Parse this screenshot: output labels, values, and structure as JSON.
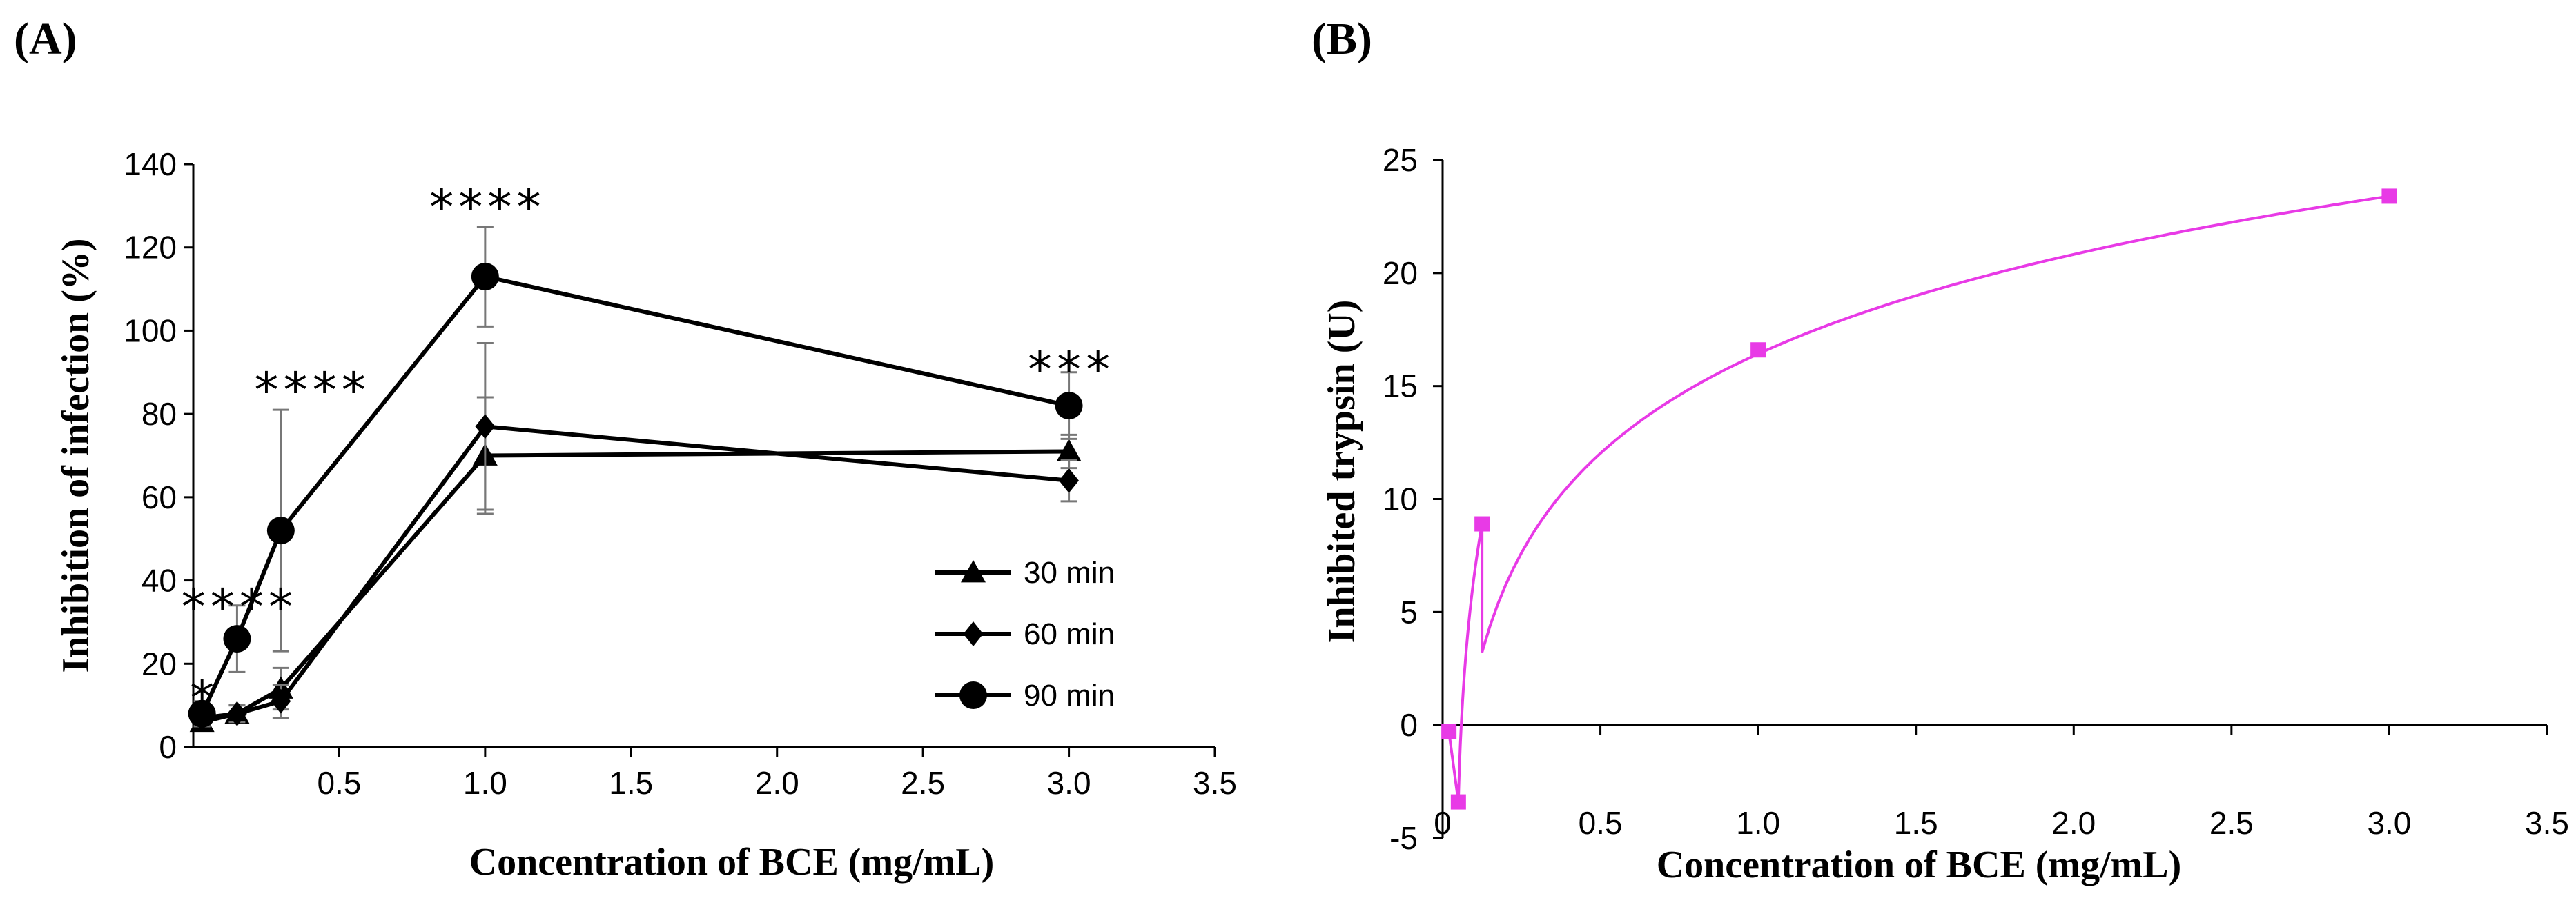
{
  "panels": {
    "a_label": "(A)",
    "b_label": "(B)"
  },
  "chart_data": [
    {
      "type": "line",
      "panel": "(A)",
      "xlabel": "Concentration of BCE (mg/mL)",
      "ylabel": "Inhibition of infection (%)",
      "xlim": [
        0,
        3.5
      ],
      "ylim": [
        0,
        140
      ],
      "xticks": [
        0.5,
        1.0,
        1.5,
        2.0,
        2.5,
        3.0,
        3.5
      ],
      "xtick_labels": [
        "0.5",
        "1.0",
        "1.5",
        "2.0",
        "2.5",
        "3.0",
        "3.5"
      ],
      "yticks": [
        0,
        20,
        40,
        60,
        80,
        100,
        120,
        140
      ],
      "ytick_labels": [
        "0",
        "20",
        "40",
        "60",
        "80",
        "100",
        "120",
        "140"
      ],
      "grid": false,
      "legend_position": "bottom-right",
      "x": [
        0.03,
        0.15,
        0.3,
        1.0,
        3.0
      ],
      "series": [
        {
          "name": "30 min",
          "marker": "triangle",
          "values": [
            6,
            8,
            14,
            70,
            71
          ],
          "errors": [
            2,
            2,
            5,
            14,
            4
          ]
        },
        {
          "name": "60 min",
          "marker": "diamond",
          "values": [
            7,
            8,
            11,
            77,
            64
          ],
          "errors": [
            2,
            2,
            4,
            20,
            5
          ]
        },
        {
          "name": "90 min",
          "marker": "circle",
          "values": [
            8,
            26,
            52,
            113,
            82
          ],
          "errors": [
            3,
            8,
            29,
            12,
            8
          ]
        }
      ],
      "annotations": [
        {
          "text": "*",
          "x": 0.03,
          "y": 12
        },
        {
          "text": "****",
          "x": 0.15,
          "y": 34
        },
        {
          "text": "****",
          "x": 0.4,
          "y": 86
        },
        {
          "text": "****",
          "x": 1.0,
          "y": 130
        },
        {
          "text": "***",
          "x": 3.0,
          "y": 91
        }
      ],
      "color": "#000000"
    },
    {
      "type": "line",
      "panel": "(B)",
      "xlabel": "Concentration of BCE (mg/mL)",
      "ylabel": "Inhibited trypsin (U)",
      "xlim": [
        0,
        3.5
      ],
      "ylim": [
        -5,
        25
      ],
      "xticks": [
        0,
        0.5,
        1.0,
        1.5,
        2.0,
        2.5,
        3.0,
        3.5
      ],
      "xtick_labels": [
        "0",
        "0.5",
        "1.0",
        "1.5",
        "2.0",
        "2.5",
        "3.0",
        "3.5"
      ],
      "yticks": [
        -5,
        0,
        5,
        10,
        15,
        20,
        25
      ],
      "ytick_labels": [
        "-5",
        "0",
        "5",
        "10",
        "15",
        "20",
        "25"
      ],
      "grid": false,
      "series": [
        {
          "name": "Inhibited trypsin",
          "marker": "square",
          "x": [
            0.02,
            0.05,
            0.125,
            1.0,
            3.0
          ],
          "values": [
            -0.3,
            -3.4,
            8.9,
            16.6,
            23.4
          ]
        }
      ],
      "color": "#e83ae6"
    }
  ]
}
